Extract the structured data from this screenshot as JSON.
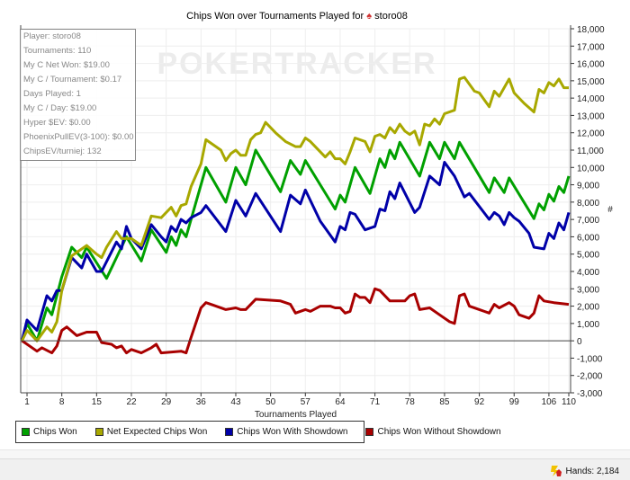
{
  "chart_data": {
    "type": "line",
    "title_prefix": "Chips Won over Tournaments Played for",
    "player": "storo08",
    "xlabel": "Tournaments Played",
    "ylabel": "#",
    "watermark": "POKERTRACKER",
    "xlim": [
      0,
      110
    ],
    "ylim": [
      -3000,
      18000
    ],
    "x_ticks": [
      1,
      8,
      15,
      22,
      29,
      36,
      43,
      50,
      57,
      64,
      71,
      78,
      85,
      92,
      99,
      106,
      110
    ],
    "y_ticks": [
      -3000,
      -2000,
      -1000,
      0,
      1000,
      2000,
      3000,
      4000,
      5000,
      6000,
      7000,
      8000,
      9000,
      10000,
      11000,
      12000,
      13000,
      14000,
      15000,
      16000,
      17000,
      18000
    ],
    "y_tick_labels": [
      "-3,000",
      "-2,000",
      "-1,000",
      "0",
      "1,000",
      "2,000",
      "3,000",
      "4,000",
      "5,000",
      "6,000",
      "7,000",
      "8,000",
      "9,000",
      "10,000",
      "11,000",
      "12,000",
      "13,000",
      "14,000",
      "15,000",
      "16,000",
      "17,000",
      "18,000"
    ],
    "grid": true,
    "legend_position": "bottom",
    "series": [
      {
        "name": "Chips Won",
        "color": "#00a000",
        "points": [
          [
            0,
            0
          ],
          [
            1,
            1000
          ],
          [
            3,
            0
          ],
          [
            5,
            1900
          ],
          [
            6,
            1500
          ],
          [
            8,
            3700
          ],
          [
            10,
            5400
          ],
          [
            12,
            4800
          ],
          [
            13,
            5400
          ],
          [
            17,
            3600
          ],
          [
            21,
            6000
          ],
          [
            24,
            4600
          ],
          [
            26,
            6400
          ],
          [
            29,
            5100
          ],
          [
            30,
            6000
          ],
          [
            31,
            5500
          ],
          [
            32,
            6400
          ],
          [
            33,
            6000
          ],
          [
            37,
            10000
          ],
          [
            41,
            8000
          ],
          [
            43,
            10000
          ],
          [
            45,
            9000
          ],
          [
            47,
            11000
          ],
          [
            52,
            8600
          ],
          [
            54,
            10400
          ],
          [
            56,
            9600
          ],
          [
            57,
            10400
          ],
          [
            63,
            7600
          ],
          [
            64,
            8400
          ],
          [
            65,
            8000
          ],
          [
            67,
            10000
          ],
          [
            70,
            8500
          ],
          [
            72,
            10500
          ],
          [
            73,
            10000
          ],
          [
            74,
            11000
          ],
          [
            75,
            10500
          ],
          [
            76,
            11450
          ],
          [
            80,
            9500
          ],
          [
            82,
            11450
          ],
          [
            84,
            10500
          ],
          [
            85,
            11450
          ],
          [
            87,
            10500
          ],
          [
            88,
            11450
          ],
          [
            94,
            8550
          ],
          [
            95,
            9400
          ],
          [
            97,
            8550
          ],
          [
            98,
            9400
          ],
          [
            103,
            7050
          ],
          [
            104,
            7900
          ],
          [
            105,
            7550
          ],
          [
            106,
            8450
          ],
          [
            107,
            8050
          ],
          [
            108,
            8900
          ],
          [
            109,
            8550
          ],
          [
            110,
            9500
          ]
        ]
      },
      {
        "name": "Net Expected Chips Won",
        "color": "#a8a800",
        "points": [
          [
            0,
            0
          ],
          [
            1,
            600
          ],
          [
            3,
            0
          ],
          [
            5,
            800
          ],
          [
            6,
            500
          ],
          [
            7,
            1100
          ],
          [
            8,
            2900
          ],
          [
            10,
            4900
          ],
          [
            13,
            5500
          ],
          [
            15,
            5000
          ],
          [
            16,
            4800
          ],
          [
            17,
            5400
          ],
          [
            19,
            6300
          ],
          [
            20,
            5900
          ],
          [
            22,
            5900
          ],
          [
            24,
            5500
          ],
          [
            26,
            7200
          ],
          [
            28,
            7100
          ],
          [
            30,
            7700
          ],
          [
            31,
            7200
          ],
          [
            32,
            7800
          ],
          [
            33,
            7900
          ],
          [
            34,
            8900
          ],
          [
            36,
            10200
          ],
          [
            37,
            11600
          ],
          [
            39,
            11200
          ],
          [
            40,
            11000
          ],
          [
            41,
            10400
          ],
          [
            42,
            10800
          ],
          [
            43,
            11000
          ],
          [
            44,
            10700
          ],
          [
            45,
            10700
          ],
          [
            46,
            11600
          ],
          [
            47,
            11900
          ],
          [
            48,
            12000
          ],
          [
            49,
            12600
          ],
          [
            51,
            12000
          ],
          [
            53,
            11500
          ],
          [
            55,
            11200
          ],
          [
            56,
            11200
          ],
          [
            57,
            11700
          ],
          [
            58,
            11500
          ],
          [
            61,
            10600
          ],
          [
            62,
            10900
          ],
          [
            63,
            10500
          ],
          [
            64,
            10500
          ],
          [
            65,
            10200
          ],
          [
            66,
            10900
          ],
          [
            67,
            11700
          ],
          [
            69,
            11500
          ],
          [
            70,
            10900
          ],
          [
            71,
            11800
          ],
          [
            72,
            11900
          ],
          [
            73,
            11700
          ],
          [
            74,
            12300
          ],
          [
            75,
            12000
          ],
          [
            76,
            12500
          ],
          [
            77,
            12100
          ],
          [
            78,
            11900
          ],
          [
            79,
            12100
          ],
          [
            80,
            11300
          ],
          [
            81,
            12500
          ],
          [
            82,
            12400
          ],
          [
            83,
            12800
          ],
          [
            84,
            12500
          ],
          [
            85,
            13100
          ],
          [
            87,
            13300
          ],
          [
            88,
            15100
          ],
          [
            89,
            15200
          ],
          [
            91,
            14400
          ],
          [
            92,
            14300
          ],
          [
            94,
            13500
          ],
          [
            95,
            14400
          ],
          [
            96,
            14100
          ],
          [
            98,
            15100
          ],
          [
            99,
            14300
          ],
          [
            101,
            13700
          ],
          [
            103,
            13200
          ],
          [
            104,
            14500
          ],
          [
            105,
            14300
          ],
          [
            106,
            14900
          ],
          [
            107,
            14700
          ],
          [
            108,
            15100
          ],
          [
            109,
            14600
          ],
          [
            110,
            14600
          ]
        ]
      },
      {
        "name": "Chips Won With Showdown",
        "color": "#0000a8",
        "points": [
          [
            0,
            0
          ],
          [
            1,
            1200
          ],
          [
            3,
            600
          ],
          [
            5,
            2600
          ],
          [
            6,
            2300
          ],
          [
            7,
            2900
          ],
          [
            8,
            2900
          ],
          [
            10,
            4800
          ],
          [
            12,
            4200
          ],
          [
            13,
            5000
          ],
          [
            15,
            4000
          ],
          [
            16,
            4000
          ],
          [
            19,
            5700
          ],
          [
            20,
            5300
          ],
          [
            21,
            6600
          ],
          [
            22,
            5900
          ],
          [
            24,
            5300
          ],
          [
            26,
            6700
          ],
          [
            28,
            6000
          ],
          [
            29,
            5700
          ],
          [
            30,
            6600
          ],
          [
            31,
            6300
          ],
          [
            32,
            7000
          ],
          [
            33,
            6800
          ],
          [
            34,
            7100
          ],
          [
            36,
            7400
          ],
          [
            37,
            7800
          ],
          [
            41,
            6300
          ],
          [
            43,
            8100
          ],
          [
            45,
            7200
          ],
          [
            47,
            8500
          ],
          [
            52,
            6300
          ],
          [
            54,
            8400
          ],
          [
            56,
            7900
          ],
          [
            57,
            8700
          ],
          [
            60,
            6900
          ],
          [
            63,
            5700
          ],
          [
            64,
            6600
          ],
          [
            65,
            6400
          ],
          [
            66,
            7400
          ],
          [
            67,
            7300
          ],
          [
            69,
            6400
          ],
          [
            71,
            6600
          ],
          [
            72,
            7600
          ],
          [
            73,
            7500
          ],
          [
            74,
            8600
          ],
          [
            75,
            8200
          ],
          [
            76,
            9100
          ],
          [
            79,
            7400
          ],
          [
            80,
            7700
          ],
          [
            82,
            9500
          ],
          [
            84,
            9000
          ],
          [
            85,
            10300
          ],
          [
            87,
            9500
          ],
          [
            89,
            8300
          ],
          [
            90,
            8500
          ],
          [
            94,
            7000
          ],
          [
            95,
            7400
          ],
          [
            96,
            7200
          ],
          [
            97,
            6700
          ],
          [
            98,
            7400
          ],
          [
            99,
            7100
          ],
          [
            100,
            6900
          ],
          [
            102,
            6200
          ],
          [
            103,
            5400
          ],
          [
            105,
            5300
          ],
          [
            106,
            6200
          ],
          [
            107,
            5900
          ],
          [
            108,
            6800
          ],
          [
            109,
            6400
          ],
          [
            110,
            7400
          ]
        ]
      },
      {
        "name": "Chips Won Without Showdown",
        "color": "#a80000",
        "points": [
          [
            0,
            0
          ],
          [
            3,
            -600
          ],
          [
            4,
            -400
          ],
          [
            6,
            -700
          ],
          [
            7,
            -300
          ],
          [
            8,
            600
          ],
          [
            9,
            800
          ],
          [
            11,
            300
          ],
          [
            13,
            500
          ],
          [
            15,
            500
          ],
          [
            16,
            -100
          ],
          [
            18,
            -200
          ],
          [
            19,
            -400
          ],
          [
            20,
            -300
          ],
          [
            21,
            -700
          ],
          [
            22,
            -500
          ],
          [
            24,
            -700
          ],
          [
            26,
            -400
          ],
          [
            27,
            -200
          ],
          [
            28,
            -700
          ],
          [
            32,
            -600
          ],
          [
            33,
            -700
          ],
          [
            34,
            200
          ],
          [
            36,
            1900
          ],
          [
            37,
            2200
          ],
          [
            38,
            2100
          ],
          [
            41,
            1800
          ],
          [
            43,
            1900
          ],
          [
            44,
            1800
          ],
          [
            45,
            1800
          ],
          [
            47,
            2400
          ],
          [
            52,
            2300
          ],
          [
            54,
            2100
          ],
          [
            55,
            1600
          ],
          [
            57,
            1800
          ],
          [
            58,
            1700
          ],
          [
            60,
            2000
          ],
          [
            62,
            2000
          ],
          [
            63,
            1900
          ],
          [
            64,
            1900
          ],
          [
            65,
            1600
          ],
          [
            66,
            1700
          ],
          [
            67,
            2700
          ],
          [
            68,
            2500
          ],
          [
            69,
            2500
          ],
          [
            70,
            2200
          ],
          [
            71,
            3000
          ],
          [
            72,
            2900
          ],
          [
            74,
            2300
          ],
          [
            77,
            2300
          ],
          [
            78,
            2600
          ],
          [
            79,
            2700
          ],
          [
            80,
            1800
          ],
          [
            82,
            1900
          ],
          [
            84,
            1500
          ],
          [
            86,
            1100
          ],
          [
            87,
            1000
          ],
          [
            88,
            2600
          ],
          [
            89,
            2700
          ],
          [
            90,
            2000
          ],
          [
            92,
            1800
          ],
          [
            93,
            1700
          ],
          [
            94,
            1600
          ],
          [
            95,
            2100
          ],
          [
            96,
            1900
          ],
          [
            98,
            2200
          ],
          [
            99,
            2000
          ],
          [
            100,
            1500
          ],
          [
            102,
            1300
          ],
          [
            103,
            1600
          ],
          [
            104,
            2600
          ],
          [
            105,
            2300
          ],
          [
            107,
            2200
          ],
          [
            110,
            2100
          ]
        ]
      }
    ]
  },
  "stats_box": [
    "Player: storo08",
    "Tournaments: 110",
    "My C Net Won: $19.00",
    "My C / Tournament: $0.17",
    "Days Played: 1",
    "My C / Day: $19.00",
    "Hyper $EV: $0.00",
    "PhoenixPullEV(3-100): $0.00",
    "ChipsEV/turniej: 132"
  ],
  "status_bar": {
    "hands": "Hands: 2,184"
  }
}
